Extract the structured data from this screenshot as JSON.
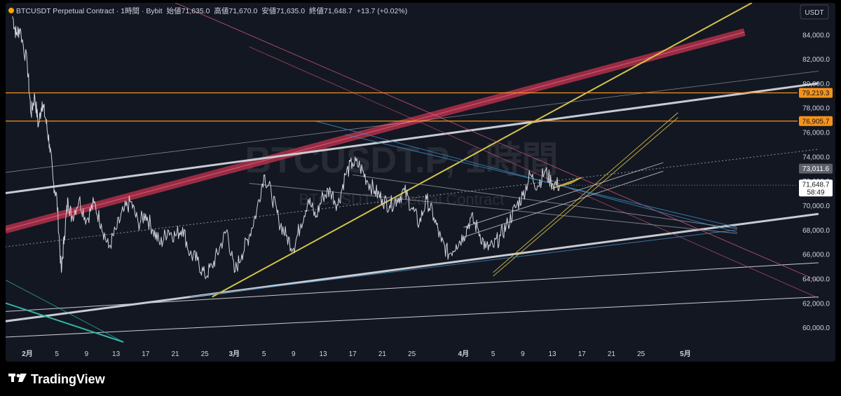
{
  "header": {
    "symbol_title": "BTCUSDT Perpetual Contract · 1時間 · Bybit",
    "open_label": "始値",
    "open_value": "71,635.0",
    "high_label": "高値",
    "high_value": "71,670.0",
    "low_label": "安値",
    "low_value": "71,635.0",
    "close_label": "終値",
    "close_value": "71,648.7",
    "change": "+13.7 (+0.02%)"
  },
  "currency_button": "USDT",
  "watermark": {
    "main": "BTCUSDT.P, 1時間",
    "sub": "BTCUSDT Perpetual Contract"
  },
  "badges": {
    "level_upper": "79,219.3",
    "level_lower": "76,905.7",
    "marker": "73,011.6",
    "last_price": "71,648.7",
    "countdown": "58:49"
  },
  "footer": {
    "brand": "TradingView",
    "logo_icon": "tradingview-logo-icon"
  },
  "colors": {
    "background": "#131722",
    "candles": "#d1d4dc",
    "orange_level": "#f7931a",
    "red_band": "#b2304a",
    "yellow": "#d4c34a",
    "white_line": "#c8cbd2",
    "teal": "#2fb7a8",
    "blue": "#3a7fb0"
  },
  "chart_data": {
    "type": "line",
    "title": "BTCUSDT Perpetual Contract · 1時間 · Bybit",
    "xlabel": "",
    "ylabel": "",
    "ylim": [
      58800,
      86600
    ],
    "y_ticks": [
      "60,000.0",
      "62,000.0",
      "64,000.0",
      "66,000.0",
      "68,000.0",
      "70,000.0",
      "72,000.0",
      "74,000.0",
      "76,000.0",
      "78,000.0",
      "80,000.0",
      "82,000.0",
      "84,000.0"
    ],
    "x_ticks": [
      {
        "label": "2月",
        "day": 0
      },
      {
        "label": "5",
        "day": 4
      },
      {
        "label": "9",
        "day": 8
      },
      {
        "label": "13",
        "day": 12
      },
      {
        "label": "17",
        "day": 16
      },
      {
        "label": "21",
        "day": 20
      },
      {
        "label": "25",
        "day": 24
      },
      {
        "label": "3月",
        "day": 28
      },
      {
        "label": "5",
        "day": 32
      },
      {
        "label": "9",
        "day": 36
      },
      {
        "label": "13",
        "day": 40
      },
      {
        "label": "17",
        "day": 44
      },
      {
        "label": "21",
        "day": 48
      },
      {
        "label": "25",
        "day": 52
      },
      {
        "label": "4月",
        "day": 59
      },
      {
        "label": "5",
        "day": 63
      },
      {
        "label": "9",
        "day": 67
      },
      {
        "label": "13",
        "day": 71
      },
      {
        "label": "17",
        "day": 75
      },
      {
        "label": "21",
        "day": 79
      },
      {
        "label": "25",
        "day": 83
      },
      {
        "label": "5月",
        "day": 89
      }
    ],
    "horizontal_levels": [
      79219.3,
      76905.7
    ],
    "series": [
      {
        "values": [
          [
            -2,
            85500
          ],
          [
            -1.5,
            84000
          ],
          [
            -1,
            84500
          ],
          [
            0,
            81500
          ],
          [
            0.5,
            77500
          ],
          [
            1,
            79000
          ],
          [
            1.5,
            76500
          ],
          [
            2,
            78500
          ],
          [
            2.5,
            77000
          ],
          [
            3,
            75000
          ],
          [
            3.5,
            72000
          ],
          [
            4,
            70500
          ],
          [
            4.6,
            64500
          ],
          [
            5,
            67500
          ],
          [
            5.5,
            70500
          ],
          [
            6,
            69000
          ],
          [
            7,
            70500
          ],
          [
            8,
            68800
          ],
          [
            9,
            70200
          ],
          [
            10,
            68500
          ],
          [
            11,
            66500
          ],
          [
            12,
            68000
          ],
          [
            13,
            69500
          ],
          [
            14,
            70300
          ],
          [
            15,
            68500
          ],
          [
            16,
            69300
          ],
          [
            17,
            68000
          ],
          [
            18,
            66800
          ],
          [
            19,
            68000
          ],
          [
            20,
            67500
          ],
          [
            21,
            68200
          ],
          [
            22,
            66000
          ],
          [
            23,
            65500
          ],
          [
            24,
            64200
          ],
          [
            25,
            65000
          ],
          [
            26,
            66500
          ],
          [
            27,
            68000
          ],
          [
            28,
            64500
          ],
          [
            29,
            66000
          ],
          [
            30,
            67500
          ],
          [
            31,
            69500
          ],
          [
            32,
            72500
          ],
          [
            33,
            71000
          ],
          [
            34,
            68800
          ],
          [
            35,
            67500
          ],
          [
            36,
            66500
          ],
          [
            37,
            68500
          ],
          [
            38,
            70500
          ],
          [
            39,
            69000
          ],
          [
            40,
            70800
          ],
          [
            41,
            71200
          ],
          [
            42,
            70000
          ],
          [
            43,
            72500
          ],
          [
            44,
            73500
          ],
          [
            45,
            73200
          ],
          [
            46,
            72000
          ],
          [
            47,
            71200
          ],
          [
            48,
            70500
          ],
          [
            49,
            70000
          ],
          [
            50,
            70500
          ],
          [
            51,
            71200
          ],
          [
            52,
            69800
          ],
          [
            53,
            68500
          ],
          [
            54,
            70500
          ],
          [
            55,
            69000
          ],
          [
            56,
            67000
          ],
          [
            57,
            66000
          ],
          [
            58,
            66800
          ],
          [
            59,
            67500
          ],
          [
            60,
            69000
          ],
          [
            61,
            68000
          ],
          [
            62,
            66500
          ],
          [
            63,
            66600
          ],
          [
            64,
            67500
          ],
          [
            65,
            68500
          ],
          [
            66,
            69800
          ],
          [
            67,
            70800
          ],
          [
            68,
            72500
          ],
          [
            69,
            71600
          ],
          [
            70,
            72800
          ],
          [
            71,
            71800
          ],
          [
            72,
            71648.7
          ]
        ]
      }
    ]
  }
}
